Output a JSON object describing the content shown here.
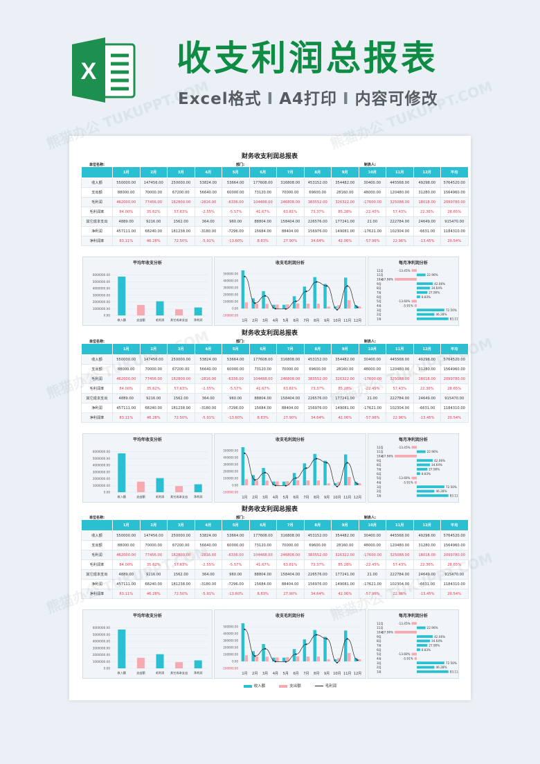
{
  "hero": {
    "logo_letter": "X",
    "title": "收支利润总报表",
    "subtitle_parts": [
      "Excel格式",
      "A4打印",
      "内容可修改"
    ],
    "separator": "I",
    "watermark": "熊猫办公 TUKUPPT.COM"
  },
  "colors": {
    "accent": "#2bbfd2",
    "pink": "#f7a9b2",
    "red": "#e8384f",
    "brand_green": "#0e8c44"
  },
  "report": {
    "title": "财务收支利润总报表",
    "unit_label": "单位名称:",
    "dept_label": "部门:",
    "maker_label": "制表人:",
    "header": [
      "",
      "1月",
      "2月",
      "3月",
      "4月",
      "5月",
      "6月",
      "7月",
      "8月",
      "9月",
      "10月",
      "11月",
      "12月",
      "平均"
    ],
    "rows": [
      {
        "label": "收入额",
        "values": [
          "550000.00",
          "147456.00",
          "250000.00",
          "53824.00",
          "53664.00",
          "177608.00",
          "316808.00",
          "453152.00",
          "354482.00",
          "30400.00",
          "445568.00",
          "49298.00",
          "5764520.00"
        ],
        "red": false
      },
      {
        "label": "支出额",
        "values": [
          "88000.00",
          "70000.00",
          "67200.00",
          "56640.00",
          "60000.00",
          "73120.00",
          "70000.00",
          "69600.00",
          "28160.00",
          "48000.00",
          "120480.00",
          "31280.00",
          "1564960.00"
        ],
        "red": false
      },
      {
        "label": "毛利润",
        "values": [
          "462000.00",
          "77456.00",
          "182800.00",
          "-2816.00",
          "-6336.00",
          "104488.00",
          "246808.00",
          "383552.00",
          "326322.00",
          "-17600.00",
          "325088.00",
          "18018.00",
          "2099780.00"
        ],
        "red": true
      },
      {
        "label": "毛利润率",
        "values": [
          "84.00%",
          "35.62%",
          "57.63%",
          "-2.55%",
          "-5.57%",
          "41.67%",
          "63.81%",
          "73.37%",
          "85.28%",
          "-22.45%",
          "57.43%",
          "22.36%",
          "28.65%"
        ],
        "red": true
      },
      {
        "label": "其它成本支出",
        "values": [
          "4889.00",
          "9216.00",
          "1562.00",
          "364.00",
          "960.00",
          "88804.00",
          "158404.00",
          "226576.00",
          "177241.00",
          "21.00",
          "222784.00",
          "24649.00",
          "915470.00"
        ],
        "red": false
      },
      {
        "label": "净利润",
        "values": [
          "457111.00",
          "68240.00",
          "181238.00",
          "-3180.00",
          "-7296.00",
          "15684.00",
          "88404.00",
          "156976.00",
          "149081.00",
          "-17621.00",
          "102304.00",
          "-6631.00",
          "1184310.00"
        ],
        "red": false
      },
      {
        "label": "净利润率",
        "values": [
          "83.11%",
          "46.28%",
          "72.50%",
          "-5.91%",
          "-13.60%",
          "8.83%",
          "27.90%",
          "34.64%",
          "42.06%",
          "-57.96%",
          "22.96%",
          "-13.45%",
          "20.54%"
        ],
        "red": true
      }
    ],
    "chart_titles": {
      "avg": "平均年收支分析",
      "gross": "收支毛利润分析",
      "net": "每月净利润分析"
    },
    "legend": {
      "income": "收入额",
      "expense": "支出额",
      "gross": "毛利润"
    }
  },
  "chart_data": [
    {
      "type": "bar",
      "title": "平均年收支分析",
      "categories": [
        "收入额",
        "支出额",
        "毛利润",
        "其它成本支出",
        "净利润"
      ],
      "values": [
        5764520,
        1564960,
        2099780,
        915470,
        1184310
      ],
      "colors": [
        "#2bbfd2",
        "#f7a9b2",
        "#2bbfd2",
        "#f7a9b2",
        "#2bbfd2"
      ],
      "ylim": [
        0,
        7000000
      ],
      "yticks": [
        "0.00",
        "1000000.00",
        "2000000.00",
        "3000000.00",
        "4000000.00",
        "5000000.00",
        "6000000.00"
      ]
    },
    {
      "type": "bar",
      "title": "收支毛利润分析",
      "categories": [
        "1月",
        "2月",
        "3月",
        "4月",
        "5月",
        "6月",
        "7月",
        "8月",
        "9月",
        "10月",
        "11月",
        "12月"
      ],
      "series": [
        {
          "name": "收入额",
          "values": [
            550000,
            147456,
            250000,
            53824,
            53664,
            177608,
            316808,
            453152,
            354482,
            30400,
            445568,
            49298
          ]
        },
        {
          "name": "支出额",
          "values": [
            88000,
            70000,
            67200,
            56640,
            60000,
            73120,
            70000,
            69600,
            28160,
            48000,
            120480,
            31280
          ]
        },
        {
          "name": "毛利润",
          "type": "line",
          "values": [
            462000,
            77456,
            182800,
            -2816,
            -6336,
            104488,
            246808,
            383552,
            326322,
            -17600,
            325088,
            18018
          ]
        }
      ],
      "ylim": [
        -100000,
        600000
      ],
      "yticks": [
        "-100000.00",
        "0.00",
        "100000.00",
        "200000.00",
        "300000.00",
        "400000.00",
        "500000.00"
      ]
    },
    {
      "type": "bar",
      "orientation": "horizontal",
      "title": "每月净利润分析",
      "categories": [
        "12月",
        "11月",
        "10月",
        "9月",
        "8月",
        "7月",
        "6月",
        "5月",
        "4月",
        "3月",
        "2月",
        "1月"
      ],
      "values": [
        -13.45,
        22.96,
        -57.96,
        42.06,
        34.64,
        27.9,
        8.83,
        -13.6,
        -5.91,
        72.5,
        46.28,
        83.11
      ],
      "labels": [
        "-13.45%",
        "22.96%",
        "-57.96%",
        "42.06%",
        "34.64%",
        "27.90%",
        "8.83%",
        "-13.60%",
        "-5.91%",
        "72.50%",
        "46.28%",
        "83.11%"
      ]
    }
  ]
}
